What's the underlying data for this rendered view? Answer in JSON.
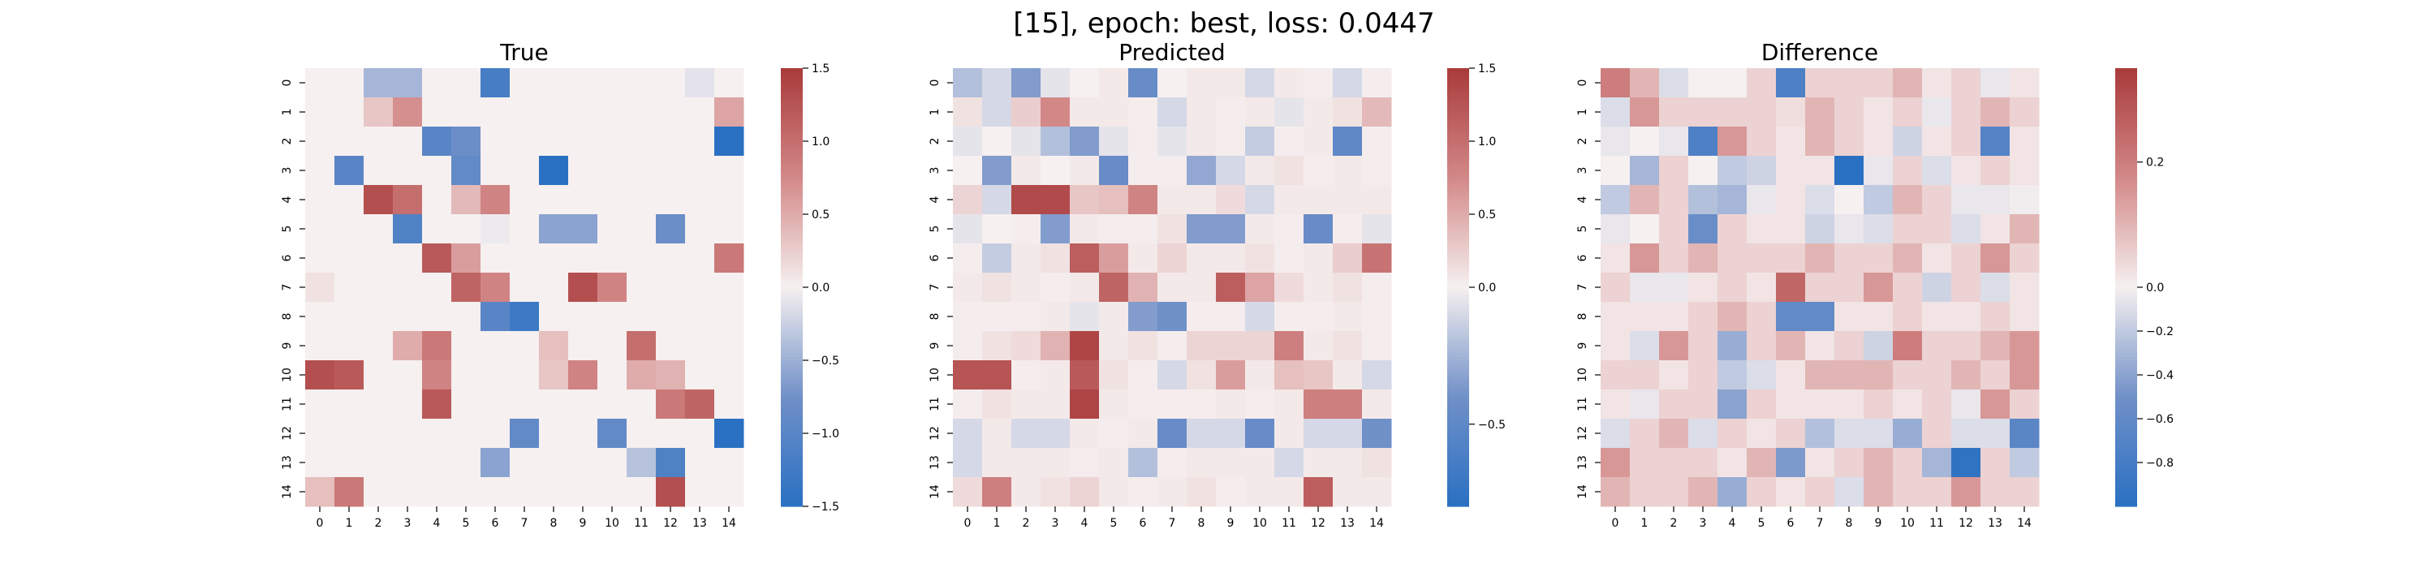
{
  "suptitle": "[15], epoch: best, loss: 0.0447",
  "chart_data": [
    {
      "type": "heatmap",
      "title": "True",
      "xlabel": "",
      "ylabel": "",
      "x_ticks": [
        "0",
        "1",
        "2",
        "3",
        "4",
        "5",
        "6",
        "7",
        "8",
        "9",
        "10",
        "11",
        "12",
        "13",
        "14"
      ],
      "y_ticks": [
        "0",
        "1",
        "2",
        "3",
        "4",
        "5",
        "6",
        "7",
        "8",
        "9",
        "10",
        "11",
        "12",
        "13",
        "14"
      ],
      "colormap": "vlag",
      "vmin": -1.5,
      "vmax": 1.5,
      "colorbar_ticks": [
        -1.5,
        -1.0,
        -0.5,
        0.0,
        0.5,
        1.0,
        1.5
      ],
      "colorbar_tick_labels": [
        "−1.5",
        "−1.0",
        "−0.5",
        "0.0",
        "0.5",
        "1.0",
        "1.5"
      ],
      "values": [
        [
          0,
          0,
          -0.45,
          -0.45,
          0,
          0,
          -1.2,
          0,
          0,
          0,
          0,
          0,
          0,
          -0.1,
          0
        ],
        [
          0,
          0,
          0.3,
          0.7,
          0,
          0,
          0,
          0,
          0,
          0,
          0,
          0,
          0,
          0,
          0.55
        ],
        [
          0,
          0,
          0,
          0,
          -1.0,
          -0.8,
          0,
          0,
          0,
          0,
          0,
          0,
          0,
          0,
          -1.5
        ],
        [
          0,
          -1.0,
          0,
          0,
          0,
          -0.9,
          0,
          0,
          -1.5,
          0,
          0,
          0,
          0,
          0,
          0
        ],
        [
          0,
          0,
          1.3,
          1.0,
          0,
          0.4,
          0.8,
          0,
          0,
          0,
          0,
          0,
          0,
          0,
          0
        ],
        [
          0,
          0,
          0,
          -1.1,
          0,
          0,
          -0.05,
          0,
          -0.6,
          -0.6,
          0,
          0,
          -0.8,
          0,
          0
        ],
        [
          0,
          0,
          0,
          0,
          1.2,
          0.6,
          0,
          0,
          0,
          0,
          0,
          0,
          0,
          0,
          0.9
        ],
        [
          0.1,
          0,
          0,
          0,
          0,
          1.1,
          0.8,
          0,
          0,
          1.3,
          0.8,
          0,
          0,
          0,
          0
        ],
        [
          0,
          0,
          0,
          0,
          0,
          0,
          -1.0,
          -1.3,
          0,
          0,
          0,
          0,
          0,
          0,
          0
        ],
        [
          0,
          0,
          0,
          0.5,
          0.9,
          0,
          0,
          0,
          0.35,
          0,
          0,
          1.0,
          0,
          0,
          0
        ],
        [
          1.3,
          1.2,
          0,
          0,
          0.8,
          0,
          0,
          0,
          0.3,
          0.8,
          0,
          0.5,
          0.45,
          0,
          0
        ],
        [
          0,
          0,
          0,
          0,
          1.2,
          0,
          0,
          0,
          0,
          0,
          0,
          0,
          0.9,
          1.1,
          0
        ],
        [
          0,
          0,
          0,
          0,
          0,
          0,
          0,
          -0.9,
          0,
          0,
          -0.9,
          0,
          0,
          0,
          -1.5
        ],
        [
          0,
          0,
          0,
          0,
          0,
          0,
          -0.6,
          0,
          0,
          0,
          0,
          -0.35,
          -1.1,
          0,
          0
        ],
        [
          0.35,
          0.9,
          0,
          0,
          0,
          0,
          0,
          0,
          0,
          0,
          0,
          0,
          1.3,
          0,
          0
        ]
      ]
    },
    {
      "type": "heatmap",
      "title": "Predicted",
      "xlabel": "",
      "ylabel": "",
      "x_ticks": [
        "0",
        "1",
        "2",
        "3",
        "4",
        "5",
        "6",
        "7",
        "8",
        "9",
        "10",
        "11",
        "12",
        "13",
        "14"
      ],
      "y_ticks": [
        "0",
        "1",
        "2",
        "3",
        "4",
        "5",
        "6",
        "7",
        "8",
        "9",
        "10",
        "11",
        "12",
        "13",
        "14"
      ],
      "colormap": "vlag",
      "vmin": -0.8,
      "vmax": 1.5,
      "colorbar_ticks": [
        -0.5,
        0.0,
        0.5,
        1.0,
        1.5
      ],
      "colorbar_tick_labels": [
        "−0.5",
        "0.0",
        "0.5",
        "1.0",
        "1.5"
      ],
      "values": [
        [
          -0.2,
          -0.1,
          -0.35,
          -0.05,
          0,
          0.05,
          -0.45,
          0,
          0.05,
          0.05,
          -0.1,
          0.05,
          0.02,
          -0.1,
          0.02
        ],
        [
          0.1,
          -0.1,
          0.25,
          0.75,
          0.05,
          0.05,
          0.03,
          -0.1,
          0.05,
          0.02,
          0.05,
          -0.05,
          0.05,
          0.1,
          0.4
        ],
        [
          -0.05,
          0,
          -0.05,
          -0.2,
          -0.35,
          -0.05,
          0.02,
          -0.05,
          0.05,
          0.02,
          -0.15,
          0.02,
          0.05,
          -0.5,
          0.02
        ],
        [
          0,
          -0.35,
          0.05,
          0,
          0.05,
          -0.45,
          0.02,
          0.02,
          -0.3,
          -0.1,
          0.05,
          0.1,
          0.02,
          0.05,
          0.02
        ],
        [
          0.2,
          -0.1,
          1.35,
          1.35,
          0.3,
          0.35,
          0.8,
          0.05,
          0.05,
          0.15,
          -0.1,
          0.05,
          0.05,
          0.05,
          0.05
        ],
        [
          -0.05,
          0,
          0.02,
          -0.35,
          0.05,
          0.02,
          0.02,
          0.1,
          -0.35,
          -0.35,
          0.05,
          0.02,
          -0.45,
          0.02,
          -0.05
        ],
        [
          0.02,
          -0.15,
          0.05,
          0.1,
          1.15,
          0.6,
          0.05,
          0.2,
          0.05,
          0.05,
          0.1,
          0.02,
          0.05,
          0.25,
          0.95
        ],
        [
          0.05,
          0.1,
          0.05,
          0.02,
          0.05,
          1.1,
          0.45,
          0.05,
          0.05,
          1.15,
          0.55,
          0.15,
          0.05,
          0.1,
          0.02
        ],
        [
          0.02,
          0.02,
          0.02,
          0.05,
          -0.05,
          0.05,
          -0.35,
          -0.4,
          0.02,
          0.02,
          -0.1,
          0.02,
          0.02,
          0.05,
          0.02
        ],
        [
          0.02,
          0.1,
          0.15,
          0.45,
          1.4,
          0.05,
          0.1,
          0.02,
          0.2,
          0.2,
          0.2,
          0.85,
          0.05,
          0.1,
          0.02
        ],
        [
          1.25,
          1.25,
          0.02,
          0.05,
          1.2,
          0.1,
          0.02,
          -0.1,
          0.1,
          0.6,
          0.05,
          0.35,
          0.3,
          0.05,
          -0.1
        ],
        [
          0.02,
          0.1,
          0.05,
          0.05,
          1.4,
          0.05,
          0.02,
          0.02,
          0.02,
          0.05,
          0.02,
          0.05,
          0.85,
          0.85,
          0.05
        ],
        [
          -0.1,
          0.05,
          -0.1,
          -0.1,
          0.05,
          0.02,
          0.05,
          -0.45,
          -0.1,
          -0.1,
          -0.45,
          0.05,
          -0.1,
          -0.1,
          -0.4
        ],
        [
          -0.1,
          0.05,
          0.05,
          0.05,
          0.02,
          0.05,
          -0.2,
          0.02,
          0.05,
          0.05,
          0.05,
          -0.1,
          0.05,
          0.05,
          0.1
        ],
        [
          0.15,
          0.85,
          0.05,
          0.1,
          0.2,
          0.05,
          0.02,
          0.05,
          0.1,
          0.02,
          0.05,
          0.05,
          1.15,
          0.05,
          0.05
        ]
      ]
    },
    {
      "type": "heatmap",
      "title": "Difference",
      "xlabel": "",
      "ylabel": "",
      "x_ticks": [
        "0",
        "1",
        "2",
        "3",
        "4",
        "5",
        "6",
        "7",
        "8",
        "9",
        "10",
        "11",
        "12",
        "13",
        "14"
      ],
      "y_ticks": [
        "0",
        "1",
        "2",
        "3",
        "4",
        "5",
        "6",
        "7",
        "8",
        "9",
        "10",
        "11",
        "12",
        "13",
        "14"
      ],
      "colormap": "vlag",
      "vmin": -1.0,
      "vmax": 0.35,
      "colorbar_ticks": [
        -0.8,
        -0.6,
        -0.4,
        -0.2,
        0.0,
        0.2
      ],
      "colorbar_tick_labels": [
        "−0.8",
        "−0.6",
        "−0.4",
        "−0.2",
        "0.0",
        "0.2"
      ],
      "values": [
        [
          0.2,
          0.1,
          -0.1,
          0,
          0,
          0.05,
          -0.75,
          0.05,
          0.05,
          0.05,
          0.1,
          0.02,
          0.05,
          -0.05,
          0.02
        ],
        [
          -0.1,
          0.15,
          0.05,
          0.05,
          0.05,
          0.05,
          0.03,
          0.1,
          0.05,
          0.02,
          0.05,
          -0.05,
          0.05,
          0.1,
          0.05
        ],
        [
          -0.05,
          0,
          -0.05,
          -0.75,
          0.15,
          0.05,
          0.02,
          0.1,
          0.05,
          0.02,
          -0.15,
          0.02,
          0.05,
          -0.7,
          0.02
        ],
        [
          0,
          -0.3,
          0.05,
          0,
          -0.2,
          -0.15,
          0.02,
          0.02,
          -1.0,
          -0.05,
          0.05,
          -0.1,
          0.02,
          0.05,
          0.02
        ],
        [
          -0.2,
          0.1,
          0.05,
          -0.25,
          -0.3,
          -0.05,
          0.02,
          -0.1,
          0,
          -0.2,
          0.1,
          0.05,
          -0.05,
          -0.05,
          -0.02
        ],
        [
          -0.05,
          0,
          0.05,
          -0.55,
          0.05,
          0.02,
          0.02,
          -0.15,
          -0.05,
          -0.1,
          0.05,
          0.05,
          -0.1,
          0.02,
          0.1
        ],
        [
          0.02,
          0.15,
          0.05,
          0.1,
          0.05,
          0.05,
          0.05,
          0.1,
          0.05,
          0.05,
          0.1,
          0.02,
          0.05,
          0.15,
          0.05
        ],
        [
          0.05,
          -0.05,
          -0.05,
          0.02,
          0.05,
          0.02,
          0.25,
          0.05,
          0.05,
          0.15,
          0.05,
          -0.15,
          0.05,
          -0.1,
          0.02
        ],
        [
          0.02,
          0.02,
          0.02,
          0.05,
          0.1,
          0.05,
          -0.6,
          -0.6,
          0.02,
          0.02,
          0.05,
          0.02,
          0.02,
          0.05,
          0.02
        ],
        [
          0.02,
          -0.1,
          0.15,
          0.05,
          -0.35,
          0.05,
          0.1,
          0.02,
          0.05,
          -0.15,
          0.2,
          0.05,
          0.05,
          0.1,
          0.15
        ],
        [
          0.05,
          0.05,
          0.02,
          0.05,
          -0.2,
          -0.1,
          0.02,
          0.1,
          0.1,
          0.1,
          0.05,
          0.05,
          0.1,
          0.05,
          0.15
        ],
        [
          0.02,
          -0.05,
          0.05,
          0.05,
          -0.4,
          0.05,
          0.02,
          0.02,
          0.02,
          0.05,
          0.02,
          0.05,
          -0.05,
          0.15,
          0.05
        ],
        [
          -0.1,
          0.05,
          0.1,
          -0.1,
          0.05,
          0.02,
          0.05,
          -0.25,
          -0.1,
          -0.1,
          -0.35,
          0.05,
          -0.1,
          -0.1,
          -0.65
        ],
        [
          0.15,
          0.05,
          0.05,
          0.05,
          0.02,
          0.1,
          -0.45,
          0.02,
          0.05,
          0.1,
          0.05,
          -0.3,
          -0.95,
          0.05,
          -0.2
        ],
        [
          0.1,
          0.05,
          0.05,
          0.1,
          -0.35,
          0.05,
          0.02,
          0.05,
          -0.1,
          0.1,
          0.05,
          0.05,
          0.15,
          0.05,
          0.05
        ]
      ]
    }
  ]
}
